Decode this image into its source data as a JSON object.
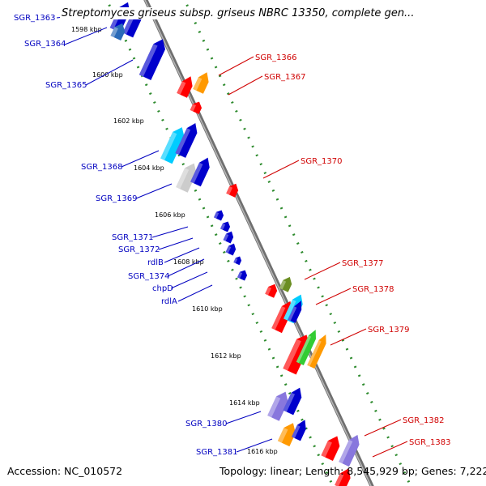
{
  "title": "Streptomyces griseus subsp. griseus NBRC 13350, complete gen...",
  "footer": {
    "accession": "Accession: NC_010572",
    "summary": "Topology: linear; Length: 8,545,929 bp; Genes: 7,222"
  },
  "colors": {
    "left_label": "#0000c0",
    "right_label": "#d00000",
    "axis": "#888888",
    "ruler": "#2e8b2e"
  },
  "ticks": [
    "1598 kbp",
    "1600 kbp",
    "1602 kbp",
    "1604 kbp",
    "1606 kbp",
    "1608 kbp",
    "1610 kbp",
    "1612 kbp",
    "1614 kbp",
    "1616 kbp"
  ],
  "left_genes": [
    "SGR_1363",
    "SGR_1364",
    "SGR_1365",
    "SGR_1368",
    "SGR_1369",
    "SGR_1371",
    "SGR_1372",
    "rdlB",
    "SGR_1374",
    "chpD",
    "rdlA",
    "SGR_1380",
    "SGR_1381"
  ],
  "right_genes": [
    "SGR_1366",
    "SGR_1367",
    "SGR_1370",
    "SGR_1377",
    "SGR_1378",
    "SGR_1379",
    "SGR_1382",
    "SGR_1383"
  ]
}
